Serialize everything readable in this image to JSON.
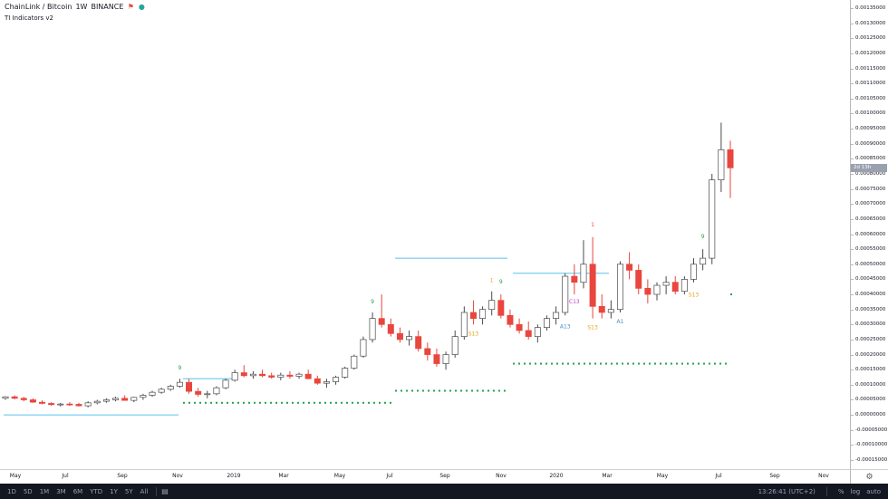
{
  "legend": {
    "symbol": "ChainLink / Bitcoin",
    "interval": "1W",
    "exchange": "BINANCE",
    "indicator": "TI Indicators v2"
  },
  "colors": {
    "up": "#ffffff",
    "up_border": "#4a4a4a",
    "down": "#e8463e",
    "support": "#5bc0eb",
    "dots": "#22a34a",
    "setup_green": "#22a34a",
    "setup_red": "#e8463e",
    "countdown_orange": "#e8a317",
    "c13": "#c23fc0",
    "a13": "#4a90c2"
  },
  "price_axis": {
    "labels": [
      "0.00135000",
      "0.00130000",
      "0.00125000",
      "0.00120000",
      "0.00115000",
      "0.00110000",
      "0.00105000",
      "0.00100000",
      "0.00095000",
      "0.00090000",
      "0.00085000",
      "0.00080000",
      "0.00075000",
      "0.00070000",
      "0.00065000",
      "0.00060000",
      "0.00055000",
      "0.00050000",
      "0.00045000",
      "0.00040000",
      "0.00035000",
      "0.00030000",
      "0.00025000",
      "0.00020000",
      "0.00015000",
      "0.00010000",
      "0.00005000",
      "0.00000000",
      "-0.00005000",
      "-0.00010000",
      "-0.00015000"
    ],
    "current_tag": "2d 13h"
  },
  "time_axis": [
    "May",
    "Jul",
    "Sep",
    "Nov",
    "2019",
    "Mar",
    "May",
    "Jul",
    "Sep",
    "Nov",
    "2020",
    "Mar",
    "May",
    "Jul",
    "Sep",
    "Nov"
  ],
  "annotations": {
    "nine": "9",
    "s13": "S13",
    "c13": "C13",
    "a13": "A13",
    "a1": "A1",
    "one": "1"
  },
  "bottom_bar": {
    "timeframes": [
      "1D",
      "5D",
      "1M",
      "3M",
      "6M",
      "YTD",
      "1Y",
      "5Y",
      "All"
    ],
    "clock": "13:26:41 (UTC+2)",
    "percent": "%",
    "log": "log",
    "auto": "auto"
  },
  "chart_data": {
    "type": "candlestick",
    "title": "ChainLink / Bitcoin",
    "xlabel": "",
    "ylabel": "",
    "ylim": [
      -0.00015,
      0.00135
    ],
    "candles": [
      [
        5.5e-05,
        6.2e-05,
        5e-05,
        6e-05
      ],
      [
        6e-05,
        6.5e-05,
        5.2e-05,
        5.5e-05
      ],
      [
        5.5e-05,
        6e-05,
        4.5e-05,
        5e-05
      ],
      [
        5e-05,
        5.5e-05,
        4e-05,
        4.2e-05
      ],
      [
        4.2e-05,
        4.8e-05,
        3.5e-05,
        3.8e-05
      ],
      [
        3.8e-05,
        4.2e-05,
        3e-05,
        3.4e-05
      ],
      [
        3.4e-05,
        4e-05,
        2.8e-05,
        3.6e-05
      ],
      [
        3.6e-05,
        4.2e-05,
        3e-05,
        3.5e-05
      ],
      [
        3.5e-05,
        4e-05,
        2.8e-05,
        3e-05
      ],
      [
        3e-05,
        4.5e-05,
        2.5e-05,
        4e-05
      ],
      [
        4e-05,
        5e-05,
        3.5e-05,
        4.5e-05
      ],
      [
        4.5e-05,
        5.5e-05,
        4e-05,
        5e-05
      ],
      [
        5e-05,
        6e-05,
        4.5e-05,
        5.5e-05
      ],
      [
        5.5e-05,
        6.5e-05,
        5e-05,
        4.8e-05
      ],
      [
        4.8e-05,
        6e-05,
        4.2e-05,
        5.8e-05
      ],
      [
        5.8e-05,
        7e-05,
        5e-05,
        6.5e-05
      ],
      [
        6.5e-05,
        8e-05,
        6e-05,
        7.5e-05
      ],
      [
        7.5e-05,
        9e-05,
        7e-05,
        8.5e-05
      ],
      [
        8.5e-05,
        0.0001,
        8e-05,
        9.5e-05
      ],
      [
        9.5e-05,
        0.00012,
        9e-05,
        0.000108
      ],
      [
        0.000108,
        0.00012,
        7e-05,
        7.8e-05
      ],
      [
        7.8e-05,
        9e-05,
        6e-05,
        6.8e-05
      ],
      [
        6.8e-05,
        8e-05,
        5.5e-05,
        7e-05
      ],
      [
        7e-05,
        9.5e-05,
        6.5e-05,
        9e-05
      ],
      [
        9e-05,
        0.00012,
        8.5e-05,
        0.000115
      ],
      [
        0.000115,
        0.00015,
        0.00011,
        0.00014
      ],
      [
        0.00014,
        0.000165,
        0.000125,
        0.00013
      ],
      [
        0.00013,
        0.000145,
        0.00012,
        0.000135
      ],
      [
        0.000135,
        0.00015,
        0.000125,
        0.00013
      ],
      [
        0.00013,
        0.00014,
        0.00012,
        0.000125
      ],
      [
        0.000125,
        0.00014,
        0.000115,
        0.000132
      ],
      [
        0.000132,
        0.000145,
        0.00012,
        0.000128
      ],
      [
        0.000128,
        0.00014,
        0.00012,
        0.000135
      ],
      [
        0.000135,
        0.00015,
        0.000125,
        0.00012
      ],
      [
        0.00012,
        0.00013,
        0.0001,
        0.000105
      ],
      [
        0.000105,
        0.00012,
        9e-05,
        0.00011
      ],
      [
        0.00011,
        0.00013,
        0.0001,
        0.000125
      ],
      [
        0.000125,
        0.00016,
        0.00012,
        0.000155
      ],
      [
        0.000155,
        0.0002,
        0.00015,
        0.000195
      ],
      [
        0.000195,
        0.00026,
        0.00019,
        0.00025
      ],
      [
        0.00025,
        0.00034,
        0.00024,
        0.00032
      ],
      [
        0.00032,
        0.0004,
        0.00029,
        0.0003
      ],
      [
        0.0003,
        0.00032,
        0.00026,
        0.00027
      ],
      [
        0.00027,
        0.00029,
        0.00024,
        0.00025
      ],
      [
        0.00025,
        0.00028,
        0.00023,
        0.00026
      ],
      [
        0.00026,
        0.00028,
        0.00021,
        0.00022
      ],
      [
        0.00022,
        0.00024,
        0.00018,
        0.0002
      ],
      [
        0.0002,
        0.00022,
        0.00016,
        0.00017
      ],
      [
        0.00017,
        0.00021,
        0.00015,
        0.0002
      ],
      [
        0.0002,
        0.00028,
        0.00019,
        0.00026
      ],
      [
        0.00026,
        0.00036,
        0.00025,
        0.00034
      ],
      [
        0.00034,
        0.00038,
        0.0003,
        0.00032
      ],
      [
        0.00032,
        0.00036,
        0.0003,
        0.00035
      ],
      [
        0.00035,
        0.00041,
        0.00033,
        0.00038
      ],
      [
        0.00038,
        0.0004,
        0.00032,
        0.00033
      ],
      [
        0.00033,
        0.00035,
        0.00029,
        0.0003
      ],
      [
        0.0003,
        0.00032,
        0.00027,
        0.00028
      ],
      [
        0.00028,
        0.00031,
        0.00025,
        0.00026
      ],
      [
        0.00026,
        0.0003,
        0.00024,
        0.00029
      ],
      [
        0.00029,
        0.00033,
        0.00028,
        0.00032
      ],
      [
        0.00032,
        0.00036,
        0.0003,
        0.00034
      ],
      [
        0.00034,
        0.00047,
        0.00033,
        0.00046
      ],
      [
        0.00046,
        0.0005,
        0.0004,
        0.00044
      ],
      [
        0.00044,
        0.00058,
        0.00042,
        0.0005
      ],
      [
        0.0005,
        0.00059,
        0.00032,
        0.00036
      ],
      [
        0.00036,
        0.0004,
        0.00032,
        0.00034
      ],
      [
        0.00034,
        0.00038,
        0.00032,
        0.00035
      ],
      [
        0.00035,
        0.00051,
        0.00034,
        0.0005
      ],
      [
        0.0005,
        0.00054,
        0.00045,
        0.00048
      ],
      [
        0.00048,
        0.0005,
        0.0004,
        0.00042
      ],
      [
        0.00042,
        0.00045,
        0.00037,
        0.0004
      ],
      [
        0.0004,
        0.00044,
        0.00038,
        0.00043
      ],
      [
        0.00043,
        0.00046,
        0.0004,
        0.00044
      ],
      [
        0.00044,
        0.00046,
        0.0004,
        0.00041
      ],
      [
        0.00041,
        0.00046,
        0.0004,
        0.00045
      ],
      [
        0.00045,
        0.00052,
        0.00044,
        0.0005
      ],
      [
        0.0005,
        0.00055,
        0.00048,
        0.00052
      ],
      [
        0.00052,
        0.0008,
        0.0005,
        0.00078
      ],
      [
        0.00078,
        0.00097,
        0.00074,
        0.00088
      ],
      [
        0.00088,
        0.00091,
        0.00072,
        0.00082
      ]
    ],
    "support_lines": [
      {
        "y": 0.0
      },
      {
        "y": 0.00012
      },
      {
        "y": 0.00052
      },
      {
        "y": 0.00047
      }
    ],
    "dot_lines": [
      {
        "y": 4e-05
      },
      {
        "y": 8e-05
      },
      {
        "y": 0.00017
      },
      {
        "y": 0.0004
      }
    ]
  }
}
